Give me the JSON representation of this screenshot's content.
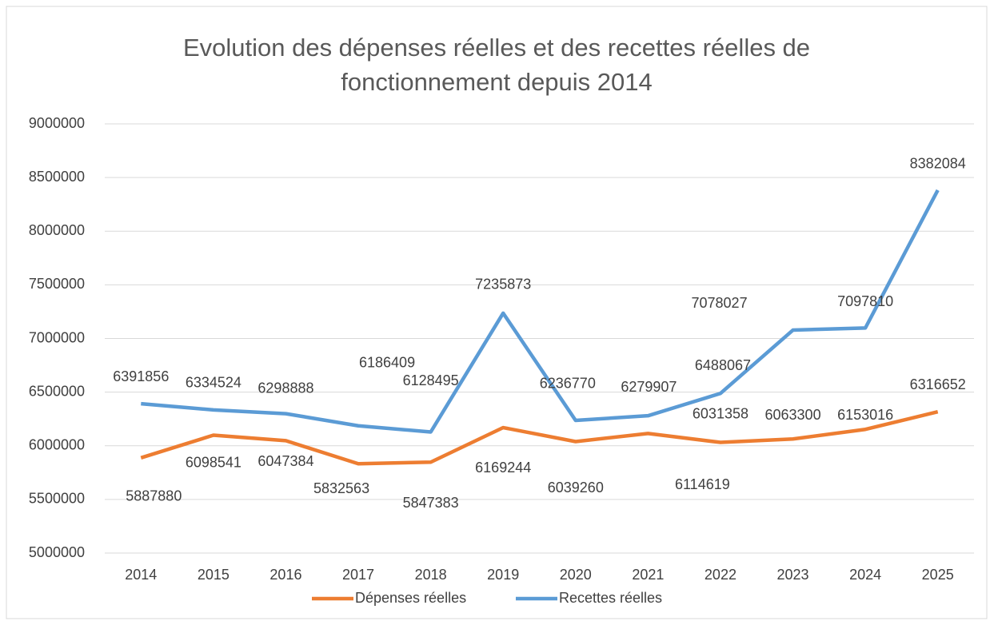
{
  "chart_data": {
    "type": "line",
    "title": "Evolution des dépenses réelles et des recettes réelles de fonctionnement depuis 2014",
    "categories": [
      "2014",
      "2015",
      "2016",
      "2017",
      "2018",
      "2019",
      "2020",
      "2021",
      "2022",
      "2023",
      "2024",
      "2025"
    ],
    "series": [
      {
        "name": "Dépenses réelles",
        "color": "#ed7d31",
        "values": [
          5887880,
          6098541,
          6047384,
          5832563,
          5847383,
          6169244,
          6039260,
          6114619,
          6031358,
          6063300,
          6153016,
          6316652
        ]
      },
      {
        "name": "Recettes réelles",
        "color": "#5b9bd5",
        "values": [
          6391856,
          6334524,
          6298888,
          6186409,
          6128495,
          7235873,
          6236770,
          6279907,
          6488067,
          7078027,
          7097810,
          8382084
        ]
      }
    ],
    "ylim": [
      5000000,
      9000000
    ],
    "yticks": [
      5000000,
      5500000,
      6000000,
      6500000,
      7000000,
      7500000,
      8000000,
      8500000,
      9000000
    ],
    "grid": true,
    "legend": "bottom"
  }
}
